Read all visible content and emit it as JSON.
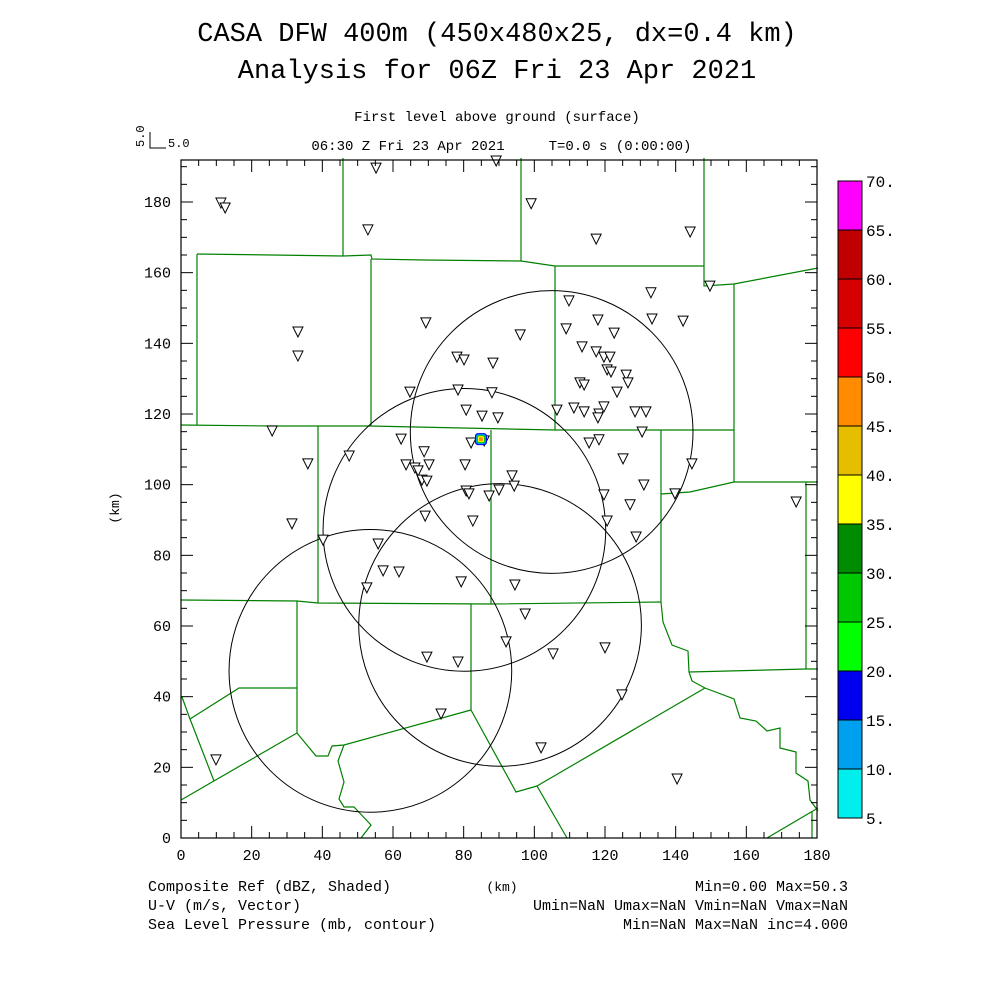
{
  "title": {
    "line1": "CASA DFW 400m (450x480x25, dx=0.4 km)",
    "line2": "Analysis for 06Z Fri 23 Apr 2021"
  },
  "subtitle": {
    "level": "First level above ground (surface)",
    "time": "06:30 Z Fri 23 Apr 2021",
    "tstep": "T=0.0 s (0:00:00)"
  },
  "ref_vector": {
    "label_vertical": "5.0",
    "label_horizontal": "5.0"
  },
  "legend": {
    "left": [
      "Composite Ref (dBZ, Shaded)",
      "U-V (m/s, Vector)",
      "Sea Level Pressure (mb, contour)"
    ],
    "center": "(km)",
    "right": [
      "Min=0.00 Max=50.3",
      "Umin=NaN Umax=NaN Vmin=NaN Vmax=NaN",
      "Min=NaN Max=NaN inc=4.000"
    ]
  },
  "chart_data": {
    "type": "scatter",
    "xlabel": "(km)",
    "ylabel": "(km)",
    "xlim": [
      0,
      180
    ],
    "ylim": [
      0,
      192
    ],
    "xticks": [
      "0",
      "20",
      "40",
      "60",
      "80",
      "100",
      "120",
      "140",
      "160",
      "180"
    ],
    "yticks": [
      "0",
      "20",
      "40",
      "60",
      "80",
      "100",
      "120",
      "140",
      "160",
      "180"
    ],
    "colorbar": {
      "labels": [
        "5.",
        "10.",
        "15.",
        "20.",
        "25.",
        "30.",
        "35.",
        "40.",
        "45.",
        "50.",
        "55.",
        "60.",
        "65.",
        "70."
      ],
      "colors": [
        "#00eeee",
        "#00a0f0",
        "#0000f0",
        "#00ff00",
        "#00c800",
        "#008c00",
        "#ffff00",
        "#e6be00",
        "#ff8c00",
        "#ff0000",
        "#d60000",
        "#c00000",
        "#ff00ff"
      ]
    },
    "radar_range_rings_km": [
      {
        "x": 104.9,
        "y": 114.9,
        "r": 40
      },
      {
        "x": 80.2,
        "y": 87.2,
        "r": 40
      },
      {
        "x": 90.3,
        "y": 60.3,
        "r": 40
      },
      {
        "x": 53.6,
        "y": 47.3,
        "r": 40
      }
    ],
    "reflectivity_echo": {
      "x": 84.9,
      "y": 112.9,
      "max_dbz": 50.3
    },
    "stations": [
      [
        11.3,
        179.7
      ],
      [
        12.5,
        178.3
      ],
      [
        55.2,
        189.6
      ],
      [
        89.2,
        191.6
      ],
      [
        99.1,
        179.5
      ],
      [
        52.9,
        172.1
      ],
      [
        117.5,
        169.5
      ],
      [
        144.1,
        171.5
      ],
      [
        149.7,
        156.2
      ],
      [
        33.1,
        143.2
      ],
      [
        33.1,
        136.4
      ],
      [
        69.3,
        145.8
      ],
      [
        133.0,
        154.3
      ],
      [
        109.8,
        152.0
      ],
      [
        133.3,
        146.9
      ],
      [
        142.1,
        146.3
      ],
      [
        96.0,
        142.4
      ],
      [
        118.0,
        146.6
      ],
      [
        122.6,
        142.9
      ],
      [
        109.0,
        144.1
      ],
      [
        113.5,
        139.0
      ],
      [
        117.5,
        137.6
      ],
      [
        119.7,
        136.1
      ],
      [
        121.4,
        136.1
      ],
      [
        120.6,
        132.5
      ],
      [
        121.7,
        131.9
      ],
      [
        126.0,
        131.0
      ],
      [
        126.5,
        128.8
      ],
      [
        112.9,
        128.8
      ],
      [
        114.1,
        128.2
      ],
      [
        123.4,
        126.2
      ],
      [
        78.1,
        136.1
      ],
      [
        80.1,
        135.3
      ],
      [
        88.3,
        134.4
      ],
      [
        64.8,
        126.2
      ],
      [
        78.4,
        126.8
      ],
      [
        88.0,
        126.0
      ],
      [
        80.7,
        121.1
      ],
      [
        85.2,
        119.4
      ],
      [
        89.7,
        118.9
      ],
      [
        106.4,
        121.1
      ],
      [
        111.2,
        121.7
      ],
      [
        114.1,
        120.6
      ],
      [
        118.3,
        120.0
      ],
      [
        119.7,
        122.0
      ],
      [
        118.0,
        118.9
      ],
      [
        128.5,
        120.6
      ],
      [
        131.6,
        120.6
      ],
      [
        130.5,
        114.9
      ],
      [
        115.5,
        111.8
      ],
      [
        118.3,
        112.7
      ],
      [
        25.8,
        115.2
      ],
      [
        35.9,
        105.9
      ],
      [
        47.6,
        108.1
      ],
      [
        62.3,
        112.9
      ],
      [
        68.8,
        109.3
      ],
      [
        82.1,
        111.8
      ],
      [
        85.8,
        112.4
      ],
      [
        63.7,
        105.6
      ],
      [
        66.2,
        104.7
      ],
      [
        67.1,
        103.9
      ],
      [
        70.2,
        105.6
      ],
      [
        68.2,
        101.3
      ],
      [
        69.6,
        101.0
      ],
      [
        80.4,
        105.6
      ],
      [
        125.1,
        107.3
      ],
      [
        144.6,
        105.9
      ],
      [
        93.7,
        102.5
      ],
      [
        94.3,
        99.6
      ],
      [
        80.7,
        98.2
      ],
      [
        81.5,
        97.4
      ],
      [
        90.0,
        98.5
      ],
      [
        87.2,
        96.8
      ],
      [
        119.7,
        97.1
      ],
      [
        131.0,
        99.9
      ],
      [
        139.8,
        97.4
      ],
      [
        127.1,
        94.3
      ],
      [
        69.1,
        91.1
      ],
      [
        31.4,
        88.9
      ],
      [
        82.6,
        89.7
      ],
      [
        120.6,
        89.7
      ],
      [
        128.8,
        85.2
      ],
      [
        40.2,
        84.3
      ],
      [
        55.8,
        83.2
      ],
      [
        57.2,
        75.6
      ],
      [
        61.7,
        75.3
      ],
      [
        79.3,
        72.5
      ],
      [
        94.5,
        71.6
      ],
      [
        52.6,
        70.8
      ],
      [
        97.4,
        63.4
      ],
      [
        92.0,
        55.5
      ],
      [
        69.6,
        51.2
      ],
      [
        78.4,
        49.8
      ],
      [
        120.0,
        53.8
      ],
      [
        105.3,
        52.1
      ],
      [
        124.8,
        40.5
      ],
      [
        73.6,
        35.1
      ],
      [
        9.9,
        22.1
      ],
      [
        101.9,
        25.5
      ],
      [
        140.4,
        16.7
      ],
      [
        174.1,
        95.1
      ]
    ]
  }
}
